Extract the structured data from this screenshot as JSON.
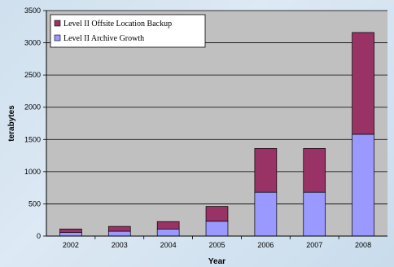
{
  "chart_data": {
    "type": "bar",
    "stacked": true,
    "categories": [
      "2002",
      "2003",
      "2004",
      "2005",
      "2006",
      "2007",
      "2008"
    ],
    "series": [
      {
        "name": "Level II Archive Growth",
        "values": [
          55,
          75,
          110,
          230,
          680,
          680,
          1580
        ],
        "color": "#9999ff"
      },
      {
        "name": "Level II Offsite Location Backup",
        "values": [
          55,
          75,
          115,
          230,
          680,
          680,
          1580
        ],
        "color": "#993366"
      }
    ],
    "legend_order": [
      "Level II Offsite Location Backup",
      "Level II Archive Growth"
    ],
    "legend_position": "top-left",
    "xlabel": "Year",
    "ylabel": "terabytes",
    "ylim": [
      0,
      3500
    ],
    "yticks": [
      0,
      500,
      1000,
      1500,
      2000,
      2500,
      3000,
      3500
    ],
    "grid": true,
    "plot_background": "#c0c0c0"
  }
}
